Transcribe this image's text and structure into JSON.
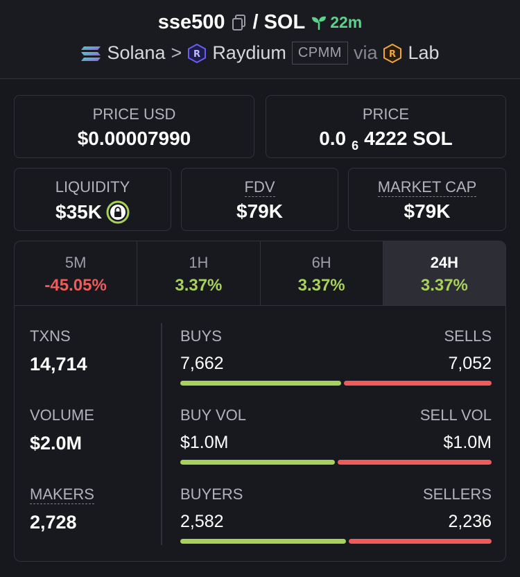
{
  "header": {
    "token_symbol": "sse500",
    "separator": "/",
    "quote_symbol": "SOL",
    "age": "22m",
    "chain": "Solana",
    "breadcrumb_sep": ">",
    "dex": "Raydium",
    "pool_type": "CPMM",
    "via": "via",
    "launchpad": "Lab"
  },
  "prices": {
    "price_usd_label": "PRICE USD",
    "price_usd_value": "$0.00007990",
    "price_label": "PRICE",
    "price_prefix": "0.0",
    "price_zeros": "6",
    "price_digits": "4222 SOL"
  },
  "metrics_row": {
    "liquidity_label": "LIQUIDITY",
    "liquidity_value": "$35K",
    "fdv_label": "FDV",
    "fdv_value": "$79K",
    "mcap_label": "MARKET CAP",
    "mcap_value": "$79K"
  },
  "tabs": [
    {
      "label": "5M",
      "value": "-45.05%"
    },
    {
      "label": "1H",
      "value": "3.37%"
    },
    {
      "label": "6H",
      "value": "3.37%"
    },
    {
      "label": "24H",
      "value": "3.37%"
    }
  ],
  "stats": {
    "txns_label": "TXNS",
    "txns_value": "14,714",
    "volume_label": "VOLUME",
    "volume_value": "$2.0M",
    "makers_label": "MAKERS",
    "makers_value": "2,728",
    "buys_label": "BUYS",
    "buys_value": "7,662",
    "sells_label": "SELLS",
    "sells_value": "7,052",
    "buy_fraction": 0.521,
    "buy_vol_label": "BUY VOL",
    "buy_vol_value": "$1.0M",
    "sell_vol_label": "SELL VOL",
    "sell_vol_value": "$1.0M",
    "buy_vol_fraction": 0.5,
    "buyers_label": "BUYERS",
    "buyers_value": "2,582",
    "sellers_label": "SELLERS",
    "sellers_value": "2,236",
    "buyers_fraction": 0.536
  },
  "colors": {
    "positive": "#a6d15a",
    "negative": "#ef5b5b",
    "age": "#5ed28b"
  }
}
